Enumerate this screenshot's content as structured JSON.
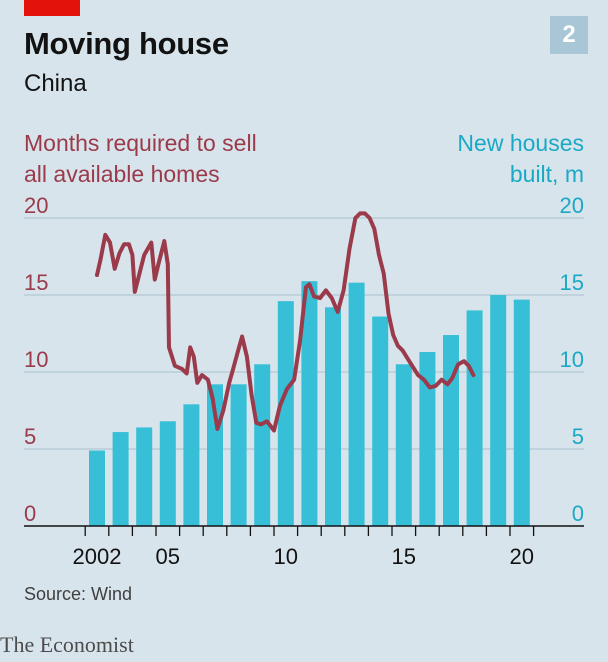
{
  "header": {
    "title": "Moving house",
    "subtitle": "China",
    "badge": "2"
  },
  "footer": {
    "source": "Source: Wind",
    "brand": "The Economist"
  },
  "colors": {
    "line": "#9b3a4a",
    "bars": "#36bfd6",
    "left_axis": "#9b3a4a",
    "right_axis": "#1aa9c4",
    "grid": "#b3c6d1"
  },
  "chart_data": {
    "type": "bar",
    "left_axis_label_lines": [
      "Months required to sell",
      "all available homes"
    ],
    "right_axis_label_lines": [
      "New houses",
      "built, m"
    ],
    "ylim": [
      0,
      20
    ],
    "yticks_left": [
      "20",
      "15",
      "10",
      "5",
      "0"
    ],
    "yticks_right": [
      "20",
      "15",
      "10",
      "5",
      "0"
    ],
    "xticks": [
      "2002",
      "05",
      "10",
      "15",
      "20"
    ],
    "grid": true,
    "series": [
      {
        "type": "bar",
        "x": [
          2002,
          2003,
          2004,
          2005,
          2006,
          2007,
          2008,
          2009,
          2010,
          2011,
          2012,
          2013,
          2014,
          2015,
          2016,
          2017,
          2018,
          2019,
          2020
        ],
        "values": [
          4.9,
          6.1,
          6.4,
          6.8,
          7.9,
          9.2,
          9.2,
          10.5,
          14.6,
          15.9,
          14.2,
          15.8,
          13.6,
          10.5,
          11.3,
          12.4,
          14.0,
          15.0,
          14.7
        ]
      },
      {
        "type": "line",
        "points": [
          [
            2002.0,
            16.3
          ],
          [
            2002.15,
            17.3
          ],
          [
            2002.35,
            18.9
          ],
          [
            2002.55,
            18.4
          ],
          [
            2002.75,
            16.7
          ],
          [
            2002.95,
            17.7
          ],
          [
            2003.15,
            18.3
          ],
          [
            2003.35,
            18.3
          ],
          [
            2003.5,
            17.6
          ],
          [
            2003.6,
            15.2
          ],
          [
            2003.8,
            16.4
          ],
          [
            2004.0,
            17.6
          ],
          [
            2004.3,
            18.4
          ],
          [
            2004.45,
            16.0
          ],
          [
            2004.6,
            17.0
          ],
          [
            2004.85,
            18.5
          ],
          [
            2005.0,
            17.0
          ],
          [
            2005.05,
            11.6
          ],
          [
            2005.3,
            10.4
          ],
          [
            2005.6,
            10.2
          ],
          [
            2005.8,
            9.9
          ],
          [
            2005.95,
            11.6
          ],
          [
            2006.1,
            11.0
          ],
          [
            2006.25,
            9.3
          ],
          [
            2006.45,
            9.8
          ],
          [
            2006.7,
            9.5
          ],
          [
            2006.9,
            8.3
          ],
          [
            2007.1,
            6.3
          ],
          [
            2007.35,
            7.5
          ],
          [
            2007.6,
            9.3
          ],
          [
            2007.75,
            10.1
          ],
          [
            2008.0,
            11.5
          ],
          [
            2008.15,
            12.3
          ],
          [
            2008.35,
            11.0
          ],
          [
            2008.55,
            8.5
          ],
          [
            2008.75,
            6.7
          ],
          [
            2008.95,
            6.6
          ],
          [
            2009.2,
            6.8
          ],
          [
            2009.35,
            6.5
          ],
          [
            2009.5,
            6.2
          ],
          [
            2009.75,
            7.8
          ],
          [
            2010.05,
            8.9
          ],
          [
            2010.35,
            9.5
          ],
          [
            2010.6,
            12.0
          ],
          [
            2010.85,
            15.5
          ],
          [
            2011.0,
            15.7
          ],
          [
            2011.2,
            14.9
          ],
          [
            2011.45,
            14.8
          ],
          [
            2011.7,
            15.3
          ],
          [
            2011.95,
            14.8
          ],
          [
            2012.2,
            13.9
          ],
          [
            2012.45,
            15.3
          ],
          [
            2012.7,
            18.0
          ],
          [
            2012.95,
            20.0
          ],
          [
            2013.15,
            20.3
          ],
          [
            2013.35,
            20.3
          ],
          [
            2013.55,
            20.0
          ],
          [
            2013.75,
            19.3
          ],
          [
            2013.95,
            17.6
          ],
          [
            2014.15,
            16.4
          ],
          [
            2014.35,
            13.8
          ],
          [
            2014.55,
            12.4
          ],
          [
            2014.75,
            11.7
          ],
          [
            2014.95,
            11.4
          ],
          [
            2015.15,
            10.9
          ],
          [
            2015.4,
            10.3
          ],
          [
            2015.6,
            9.8
          ],
          [
            2015.85,
            9.5
          ],
          [
            2016.1,
            9.0
          ],
          [
            2016.35,
            9.1
          ],
          [
            2016.6,
            9.5
          ],
          [
            2016.85,
            9.2
          ],
          [
            2017.05,
            9.6
          ],
          [
            2017.3,
            10.5
          ],
          [
            2017.55,
            10.7
          ],
          [
            2017.75,
            10.4
          ],
          [
            2017.95,
            9.8
          ]
        ]
      }
    ]
  }
}
